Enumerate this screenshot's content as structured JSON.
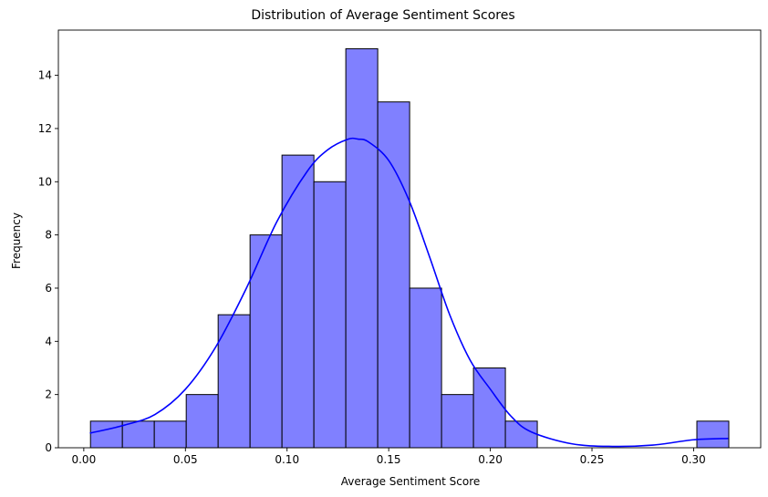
{
  "chart_data": {
    "type": "bar",
    "title": "Distribution of Average Sentiment Scores",
    "xlabel": "Average Sentiment Score",
    "ylabel": "Frequency",
    "xlim": [
      -0.0125,
      0.333
    ],
    "ylim": [
      0,
      15.7
    ],
    "xticks": [
      0.0,
      0.05,
      0.1,
      0.15,
      0.2,
      0.25,
      0.3
    ],
    "xtick_labels": [
      "0.00",
      "0.05",
      "0.10",
      "0.15",
      "0.20",
      "0.25",
      "0.30"
    ],
    "yticks": [
      0,
      2,
      4,
      6,
      8,
      10,
      12,
      14
    ],
    "ytick_labels": [
      "0",
      "2",
      "4",
      "6",
      "8",
      "10",
      "12",
      "14"
    ],
    "bins": [
      {
        "x0": 0.0033,
        "x1": 0.019,
        "count": 1
      },
      {
        "x0": 0.019,
        "x1": 0.0347,
        "count": 1
      },
      {
        "x0": 0.0347,
        "x1": 0.0504,
        "count": 1
      },
      {
        "x0": 0.0504,
        "x1": 0.0661,
        "count": 2
      },
      {
        "x0": 0.0661,
        "x1": 0.0818,
        "count": 5
      },
      {
        "x0": 0.0818,
        "x1": 0.0975,
        "count": 8
      },
      {
        "x0": 0.0975,
        "x1": 0.1132,
        "count": 11
      },
      {
        "x0": 0.1132,
        "x1": 0.1289,
        "count": 10
      },
      {
        "x0": 0.1289,
        "x1": 0.1446,
        "count": 15
      },
      {
        "x0": 0.1446,
        "x1": 0.1603,
        "count": 13
      },
      {
        "x0": 0.1603,
        "x1": 0.176,
        "count": 6
      },
      {
        "x0": 0.176,
        "x1": 0.1917,
        "count": 2
      },
      {
        "x0": 0.1917,
        "x1": 0.2074,
        "count": 3
      },
      {
        "x0": 0.2074,
        "x1": 0.2231,
        "count": 1
      },
      {
        "x0": 0.3016,
        "x1": 0.3173,
        "count": 1
      }
    ],
    "kde": {
      "x": [
        0.003,
        0.02,
        0.035,
        0.05,
        0.065,
        0.08,
        0.095,
        0.11,
        0.12,
        0.13,
        0.135,
        0.14,
        0.15,
        0.16,
        0.17,
        0.18,
        0.19,
        0.2,
        0.21,
        0.22,
        0.24,
        0.26,
        0.28,
        0.3,
        0.317
      ],
      "y": [
        0.55,
        0.85,
        1.25,
        2.2,
        3.8,
        6.0,
        8.5,
        10.4,
        11.2,
        11.6,
        11.6,
        11.5,
        10.8,
        9.3,
        7.2,
        5.0,
        3.3,
        2.2,
        1.2,
        0.6,
        0.15,
        0.05,
        0.1,
        0.3,
        0.35
      ]
    },
    "colors": {
      "bar_fill": "#8080ff",
      "bar_edge": "#000000",
      "kde_line": "#0000ff"
    }
  }
}
